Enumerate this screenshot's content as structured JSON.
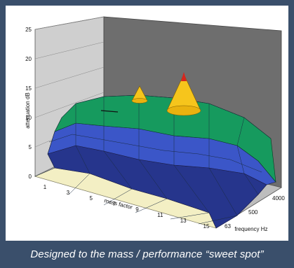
{
  "caption": "Designed to the mass / performance “sweet spot”",
  "chart_data": {
    "type": "surface",
    "xlabel": "mass factor",
    "ylabel": "frequency Hz",
    "zlabel": "attenuation dB",
    "x_ticks": [
      "1",
      "3",
      "5",
      "7",
      "9",
      "11",
      "13",
      "15"
    ],
    "y_ticks": [
      "4000",
      "500",
      "63"
    ],
    "z_ticks": [
      "0",
      "5",
      "10",
      "15",
      "20",
      "25"
    ],
    "zlim": [
      0,
      25
    ],
    "grid": true,
    "color_bands": [
      {
        "range": [
          0,
          5
        ],
        "color": "#f3efc4"
      },
      {
        "range": [
          5,
          10
        ],
        "color": "#26358c"
      },
      {
        "range": [
          10,
          15
        ],
        "color": "#3b56c8"
      },
      {
        "range": [
          15,
          20
        ],
        "color": "#169a5e"
      },
      {
        "range": [
          20,
          25
        ],
        "color": "#f6c51c"
      }
    ],
    "series": [
      {
        "name": "",
        "frequency": "63",
        "values": [
          3,
          3.5,
          4,
          4,
          3.5,
          3,
          2,
          1.5
        ]
      },
      {
        "name": "",
        "frequency": "500",
        "values": [
          6,
          8,
          9,
          9.5,
          9,
          8,
          6,
          4
        ]
      },
      {
        "name": "",
        "frequency": "4000",
        "values": [
          8,
          11,
          13,
          19,
          14,
          21,
          12,
          9
        ]
      }
    ]
  }
}
